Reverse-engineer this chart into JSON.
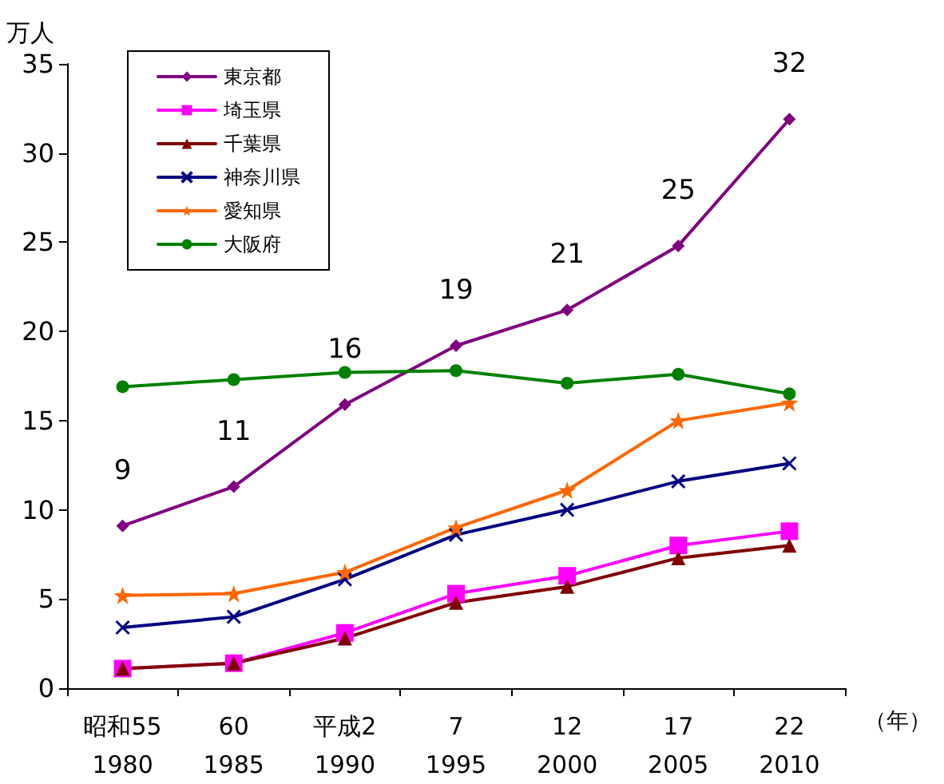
{
  "chart_data": {
    "type": "line",
    "ylabel": "万人",
    "xlabel": "（年）",
    "categories": [
      "昭和55\n1980",
      "60\n1985",
      "平成2\n1990",
      "7\n1995",
      "12\n2000",
      "17\n2005",
      "22\n2010"
    ],
    "ylim": [
      0,
      35
    ],
    "yticks": [
      0,
      5,
      10,
      15,
      20,
      25,
      30,
      35
    ],
    "grid": false,
    "legend": "top left",
    "line_style": "solid",
    "series": [
      {
        "name": "東京都",
        "color": "#800080",
        "marker": "diamond",
        "values": [
          9.1,
          11.3,
          15.9,
          19.2,
          21.2,
          24.8,
          31.9
        ],
        "value_labels": [
          "9",
          "11",
          "16",
          "19",
          "21",
          "25",
          "32"
        ]
      },
      {
        "name": "埼玉県",
        "color": "#ff00ff",
        "marker": "square",
        "values": [
          1.1,
          1.4,
          3.1,
          5.3,
          6.3,
          8.0,
          8.8
        ]
      },
      {
        "name": "千葉県",
        "color": "#800000",
        "marker": "triangle",
        "values": [
          1.1,
          1.4,
          2.8,
          4.8,
          5.7,
          7.3,
          8.0
        ]
      },
      {
        "name": "神奈川県",
        "color": "#000080",
        "marker": "cross",
        "values": [
          3.4,
          4.0,
          6.1,
          8.6,
          10.0,
          11.6,
          12.6
        ]
      },
      {
        "name": "愛知県",
        "color": "#ff6600",
        "marker": "star",
        "values": [
          5.2,
          5.3,
          6.5,
          9.0,
          11.1,
          15.0,
          16.0
        ]
      },
      {
        "name": "大阪府",
        "color": "#008000",
        "marker": "circle",
        "values": [
          16.9,
          17.3,
          17.7,
          17.8,
          17.1,
          17.6,
          16.5
        ]
      }
    ]
  }
}
